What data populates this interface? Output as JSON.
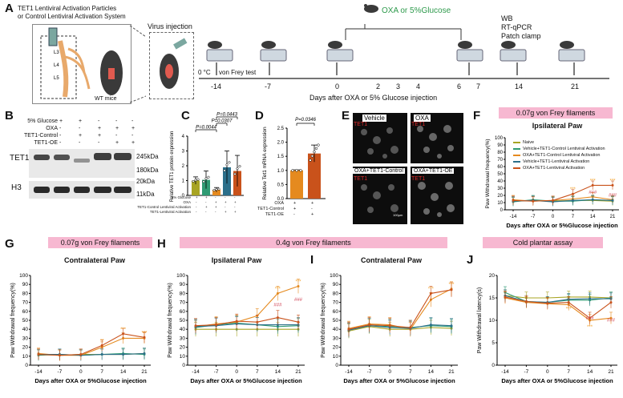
{
  "panel_labels": {
    "a": "A",
    "b": "B",
    "c": "C",
    "d": "D",
    "e": "E",
    "f": "F",
    "g": "G",
    "h": "H",
    "i": "I",
    "j": "J"
  },
  "panel_a": {
    "system_line1": "TET1 Lentiviral Activation Particles",
    "system_line2": "or Control Lentiviral Activation System",
    "virus_injection": "Virus injection",
    "wt_mice": "WT mice",
    "treatment": "OXA or 5%Glucose",
    "cold_label": "0 °C",
    "von_frey": "von Frey test",
    "assays": [
      "WB",
      "RT-qPCR",
      "Patch clamp"
    ],
    "days": [
      "-14",
      "-7",
      "0",
      "2",
      "3",
      "4",
      "6",
      "7",
      "14",
      "21"
    ],
    "axis_title": "Days after OXA or 5% Glucose injection",
    "spinal_labels": [
      "L3",
      "L4",
      "L5"
    ]
  },
  "panel_b": {
    "rows": [
      {
        "label": "5% Glucose",
        "signs": [
          "+",
          "+",
          "-",
          "-",
          "-"
        ]
      },
      {
        "label": "OXA",
        "signs": [
          "-",
          "-",
          "+",
          "+",
          "+"
        ]
      },
      {
        "label": "TET1-Control",
        "signs": [
          "-",
          "+",
          "+",
          "-",
          "-"
        ]
      },
      {
        "label": "TET1-OE",
        "signs": [
          "-",
          "-",
          "-",
          "+",
          "+"
        ]
      }
    ],
    "band1": "TET1",
    "band2": "H3",
    "markers": [
      "245kDa",
      "180kDa",
      "20kDa",
      "11kDa"
    ]
  },
  "panel_c": {
    "ylabel": "Relative TET1 protein expression",
    "pvalues": [
      "P=0.0044",
      "P=0.0307",
      "P=0.0443"
    ],
    "xrows": [
      {
        "label": "5% Glucose",
        "signs": [
          "+",
          "+",
          "-",
          "-",
          "-"
        ]
      },
      {
        "label": "OXA",
        "signs": [
          "-",
          "-",
          "+",
          "+",
          "+"
        ]
      },
      {
        "label": "TET1-Control Lentiviral Activation",
        "signs": [
          "-",
          "+",
          "+",
          "-",
          "-"
        ]
      },
      {
        "label": "TET1-Lentiviral Activation",
        "signs": [
          "-",
          "-",
          "-",
          "+",
          "+"
        ]
      }
    ]
  },
  "panel_d": {
    "ylabel": "Relative Tet1 mRNA expression",
    "pvalue": "P=0.0346",
    "xrows": [
      {
        "label": "OXA",
        "signs": [
          "+",
          "+"
        ]
      },
      {
        "label": "TET1-Control",
        "signs": [
          "+",
          "-"
        ]
      },
      {
        "label": "TET1-OE",
        "signs": [
          "-",
          "+"
        ]
      }
    ]
  },
  "panel_e": {
    "titles": [
      "Vehicle",
      "OXA",
      "OXA+TET1-Control",
      "OXA+TET1-OE"
    ],
    "stain": "TET1",
    "scale": "100μm"
  },
  "filament_007": "0.07g von Frey filaments",
  "filament_04": "0.4g von Frey filaments",
  "cold_plantar": "Cold plantar assay",
  "xlabel": "Days after OXA or 5%Glucose injection",
  "ylabel_pwf": "Paw Withdrawal frequency(%)",
  "ylabel_lat": "Paw Withdrawal latency(s)",
  "legend": [
    "Naive",
    "Vehicle+TET1-Control Lentiviral Activation",
    "OXA+TET1-Control Lentiviral Activation",
    "Vehicle+TET1-Lentiviral Activation",
    "OXA+TET1-Lentiviral Activation"
  ],
  "colors": {
    "naive": "#a8a423",
    "veh_ctrl": "#2f9a73",
    "oxa_ctrl": "#e58a1f",
    "veh_oe": "#2b6f8a",
    "oxa_oe": "#c9521b",
    "pink": "#f7b8d1",
    "sig_orange": "#f2a12c",
    "sig_red": "#d24a5a"
  },
  "chart_data": [
    {
      "id": "panel_c",
      "type": "bar",
      "categories": [
        "Glucose",
        "Glucose+Ctrl",
        "OXA+Ctrl",
        "Veh+OE",
        "OXA+OE"
      ],
      "values": [
        1.0,
        1.05,
        0.38,
        1.9,
        1.65
      ],
      "errors": [
        0.25,
        0.6,
        0.15,
        1.1,
        1.05
      ],
      "ylim": [
        0,
        4
      ],
      "yticks": [
        0,
        1,
        2,
        3,
        4
      ],
      "colors": [
        "#a8a423",
        "#2f9a73",
        "#e58a1f",
        "#2b6f8a",
        "#c9521b"
      ]
    },
    {
      "id": "panel_d",
      "type": "bar",
      "categories": [
        "OXA+Ctrl",
        "OXA+OE"
      ],
      "values": [
        1.0,
        1.6
      ],
      "errors": [
        0.02,
        0.3
      ],
      "ylim": [
        0,
        2.5
      ],
      "yticks": [
        0.0,
        0.5,
        1.0,
        1.5,
        2.0,
        2.5
      ],
      "colors": [
        "#e58a1f",
        "#c9521b"
      ]
    },
    {
      "id": "panel_f",
      "type": "line",
      "title": "Ipsilateral Paw",
      "x": [
        "-14",
        "-7",
        "0",
        "7",
        "14",
        "21"
      ],
      "ylim": [
        0,
        100
      ],
      "yticks": [
        0,
        10,
        20,
        30,
        40,
        50,
        60,
        70,
        80,
        90,
        100
      ],
      "series": [
        {
          "name": "Naive",
          "values": [
            12,
            13,
            12,
            13,
            13,
            12
          ]
        },
        {
          "name": "Vehicle+TET1-Control Lentiviral Activation",
          "values": [
            11,
            14,
            12,
            12,
            14,
            13
          ]
        },
        {
          "name": "OXA+TET1-Control Lentiviral Activation",
          "values": [
            14,
            12,
            13,
            15,
            18,
            14
          ]
        },
        {
          "name": "Vehicle+TET1-Lentiviral Activation",
          "values": [
            12,
            13,
            11,
            13,
            14,
            13
          ]
        },
        {
          "name": "OXA+TET1-Lentiviral Activation",
          "values": [
            13,
            12,
            13,
            22,
            34,
            34
          ]
        }
      ]
    },
    {
      "id": "panel_g",
      "type": "line",
      "title": "Contralateral Paw",
      "x": [
        "-14",
        "-7",
        "0",
        "7",
        "14",
        "21"
      ],
      "ylim": [
        0,
        100
      ],
      "yticks": [
        0,
        10,
        20,
        30,
        40,
        50,
        60,
        70,
        80,
        90,
        100
      ],
      "series": [
        {
          "name": "Naive",
          "values": [
            12,
            11,
            12,
            12,
            12,
            13
          ]
        },
        {
          "name": "Vehicle+TET1-Control Lentiviral Activation",
          "values": [
            11,
            12,
            11,
            12,
            13,
            12
          ]
        },
        {
          "name": "OXA+TET1-Control Lentiviral Activation",
          "values": [
            13,
            11,
            11,
            20,
            30,
            30
          ]
        },
        {
          "name": "Vehicle+TET1-Lentiviral Activation",
          "values": [
            12,
            12,
            11,
            12,
            12,
            13
          ]
        },
        {
          "name": "OXA+TET1-Lentiviral Activation",
          "values": [
            12,
            11,
            12,
            22,
            35,
            31
          ]
        }
      ]
    },
    {
      "id": "panel_h",
      "type": "line",
      "title": "Ipsilateral Paw",
      "x": [
        "-14",
        "-7",
        "0",
        "7",
        "14",
        "21"
      ],
      "ylim": [
        0,
        100
      ],
      "yticks": [
        0,
        10,
        20,
        30,
        40,
        50,
        60,
        70,
        80,
        90,
        100
      ],
      "series": [
        {
          "name": "Naive",
          "values": [
            40,
            40,
            40,
            40,
            40,
            40
          ]
        },
        {
          "name": "Vehicle+TET1-Control Lentiviral Activation",
          "values": [
            42,
            45,
            47,
            45,
            43,
            44
          ]
        },
        {
          "name": "OXA+TET1-Control Lentiviral Activation",
          "values": [
            43,
            46,
            48,
            55,
            80,
            88
          ]
        },
        {
          "name": "Vehicle+TET1-Lentiviral Activation",
          "values": [
            43,
            44,
            46,
            45,
            45,
            45
          ]
        },
        {
          "name": "OXA+TET1-Lentiviral Activation",
          "values": [
            44,
            45,
            49,
            48,
            53,
            48
          ]
        }
      ]
    },
    {
      "id": "panel_i",
      "type": "line",
      "title": "Contralateral Paw",
      "x": [
        "-14",
        "-7",
        "0",
        "7",
        "14",
        "21"
      ],
      "ylim": [
        0,
        100
      ],
      "yticks": [
        0,
        10,
        20,
        30,
        40,
        50,
        60,
        70,
        80,
        90,
        100
      ],
      "series": [
        {
          "name": "Naive",
          "values": [
            38,
            43,
            40,
            40,
            42,
            41
          ]
        },
        {
          "name": "Vehicle+TET1-Control Lentiviral Activation",
          "values": [
            40,
            44,
            43,
            42,
            44,
            43
          ]
        },
        {
          "name": "OXA+TET1-Control Lentiviral Activation",
          "values": [
            41,
            46,
            45,
            40,
            73,
            85
          ]
        },
        {
          "name": "Vehicle+TET1-Lentiviral Activation",
          "values": [
            39,
            44,
            42,
            41,
            45,
            44
          ]
        },
        {
          "name": "OXA+TET1-Lentiviral Activation",
          "values": [
            40,
            45,
            44,
            42,
            80,
            84
          ]
        }
      ]
    },
    {
      "id": "panel_j",
      "type": "line",
      "x": [
        "-14",
        "-7",
        "0",
        "7",
        "14",
        "21"
      ],
      "ylim": [
        0,
        20
      ],
      "yticks": [
        0,
        5,
        10,
        15,
        20
      ],
      "series": [
        {
          "name": "Naive",
          "values": [
            15.5,
            15.0,
            15.0,
            15.2,
            15.2,
            15.0
          ]
        },
        {
          "name": "Vehicle+TET1-Control Lentiviral Activation",
          "values": [
            16.2,
            14.2,
            14.0,
            14.5,
            14.5,
            15.0
          ]
        },
        {
          "name": "OXA+TET1-Control Lentiviral Activation",
          "values": [
            15.0,
            14.0,
            13.7,
            13.5,
            10.0,
            10.5
          ]
        },
        {
          "name": "Vehicle+TET1-Lentiviral Activation",
          "values": [
            15.5,
            14.2,
            14.0,
            14.7,
            14.8,
            14.8
          ]
        },
        {
          "name": "OXA+TET1-Lentiviral Activation",
          "values": [
            15.2,
            14.2,
            13.8,
            14.0,
            10.5,
            14.0
          ]
        }
      ]
    }
  ]
}
